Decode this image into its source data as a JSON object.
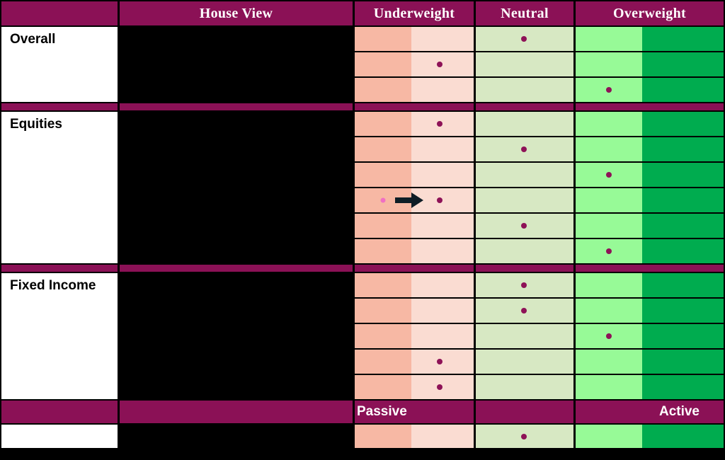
{
  "palette": {
    "magenta": "#8B1156",
    "uw_strong": "#F7B8A4",
    "uw_mild": "#FADCD2",
    "neutral": "#D7E8C3",
    "ow_mild": "#97FA97",
    "ow_strong": "#00AC4F",
    "dot": "#8E1257",
    "prev_dot": "#F06FC3",
    "arrow": "#0E1D26",
    "label_bg": "#FFFFFF",
    "redacted_bg": "#000000"
  },
  "chart_data": {
    "type": "heatmap",
    "title": "House View",
    "columns": [
      "Underweight",
      "Neutral",
      "Overweight"
    ],
    "position_scale": [
      "underweight-strong",
      "underweight-mild",
      "neutral",
      "overweight-mild",
      "overweight-strong"
    ],
    "sections": [
      {
        "id": "overall",
        "label": "Overall",
        "rows": [
          {
            "position": "neutral"
          },
          {
            "position": "underweight-mild"
          },
          {
            "position": "overweight-mild"
          }
        ]
      },
      {
        "id": "equities",
        "label": "Equities",
        "rows": [
          {
            "position": "underweight-mild"
          },
          {
            "position": "neutral"
          },
          {
            "position": "overweight-mild"
          },
          {
            "position": "underweight-mild",
            "previous_position": "underweight-strong",
            "change_arrow": true
          },
          {
            "position": "neutral"
          },
          {
            "position": "overweight-mild"
          }
        ]
      },
      {
        "id": "fixed-income",
        "label": "Fixed Income",
        "rows": [
          {
            "position": "neutral"
          },
          {
            "position": "neutral"
          },
          {
            "position": "overweight-mild"
          },
          {
            "position": "underweight-mild"
          },
          {
            "position": "underweight-mild"
          }
        ]
      }
    ],
    "footer": {
      "passive_label": "Passive",
      "active_label": "Active",
      "row": {
        "position": "neutral"
      }
    }
  }
}
